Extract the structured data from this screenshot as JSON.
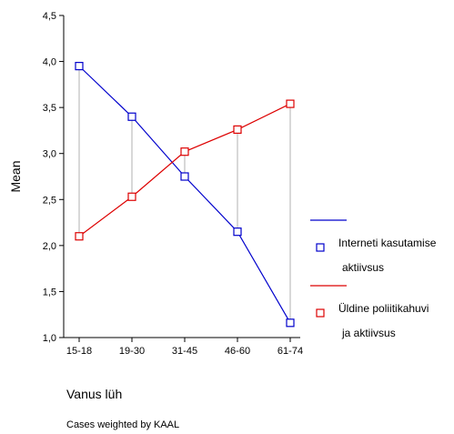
{
  "chart_data": {
    "type": "line",
    "ylabel": "Mean",
    "xlabel": "Vanus lüh",
    "footnote": "Cases weighted by KAAL",
    "categories": [
      "15-18",
      "19-30",
      "31-45",
      "46-60",
      "61-74"
    ],
    "ylim": [
      1.0,
      4.5
    ],
    "yticks": [
      "1,0",
      "1,5",
      "2,0",
      "2,5",
      "3,0",
      "3,5",
      "4,0",
      "4,5"
    ],
    "drop_lines": true,
    "series": [
      {
        "name_lines": [
          "Interneti kasutamise",
          "aktiivsus"
        ],
        "color": "#0000cc",
        "values": [
          3.95,
          3.4,
          2.75,
          2.15,
          1.16
        ]
      },
      {
        "name_lines": [
          "Üldine poliitikahuvi",
          "ja aktiivsus"
        ],
        "color": "#dd0000",
        "values": [
          2.1,
          2.53,
          3.02,
          3.26,
          3.54
        ]
      }
    ]
  }
}
